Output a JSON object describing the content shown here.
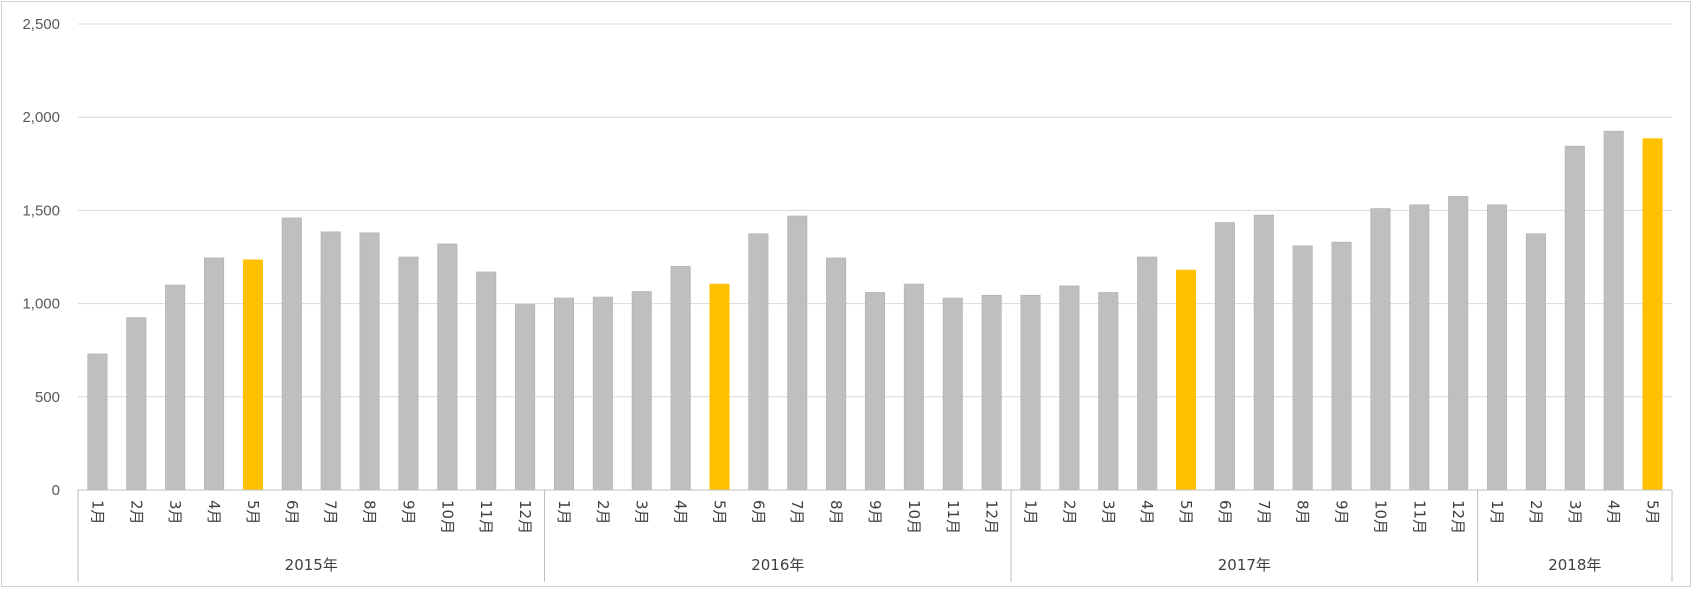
{
  "chart_data": {
    "type": "bar",
    "ylim": [
      0,
      2500
    ],
    "yticks": [
      0,
      500,
      1000,
      1500,
      2000,
      2500
    ],
    "ytick_labels": [
      "0",
      "500",
      "1,000",
      "1,500",
      "2,000",
      "2,500"
    ],
    "grid": true,
    "legend": "none",
    "colors": {
      "default": "#bfbfbf",
      "highlight": "#ffc000",
      "grid": "#d9d9d9",
      "axis": "#bfbfbf"
    },
    "groups": [
      {
        "year": "2015年",
        "months": [
          "1月",
          "2月",
          "3月",
          "4月",
          "5月",
          "6月",
          "7月",
          "8月",
          "9月",
          "10月",
          "11月",
          "12月"
        ],
        "values": [
          730,
          925,
          1100,
          1245,
          1235,
          1460,
          1385,
          1380,
          1250,
          1320,
          1170,
          995
        ],
        "highlight": [
          false,
          false,
          false,
          false,
          true,
          false,
          false,
          false,
          false,
          false,
          false,
          false
        ]
      },
      {
        "year": "2016年",
        "months": [
          "1月",
          "2月",
          "3月",
          "4月",
          "5月",
          "6月",
          "7月",
          "8月",
          "9月",
          "10月",
          "11月",
          "12月"
        ],
        "values": [
          1030,
          1035,
          1065,
          1200,
          1105,
          1375,
          1470,
          1245,
          1060,
          1105,
          1030,
          1045
        ],
        "highlight": [
          false,
          false,
          false,
          false,
          true,
          false,
          false,
          false,
          false,
          false,
          false,
          false
        ]
      },
      {
        "year": "2017年",
        "months": [
          "1月",
          "2月",
          "3月",
          "4月",
          "5月",
          "6月",
          "7月",
          "8月",
          "9月",
          "10月",
          "11月",
          "12月"
        ],
        "values": [
          1045,
          1095,
          1060,
          1250,
          1180,
          1435,
          1475,
          1310,
          1330,
          1510,
          1530,
          1575
        ],
        "highlight": [
          false,
          false,
          false,
          false,
          true,
          false,
          false,
          false,
          false,
          false,
          false,
          false
        ]
      },
      {
        "year": "2018年",
        "months": [
          "1月",
          "2月",
          "3月",
          "4月",
          "5月"
        ],
        "values": [
          1530,
          1375,
          1845,
          1925,
          1885
        ],
        "highlight": [
          false,
          false,
          false,
          false,
          true
        ]
      }
    ]
  }
}
